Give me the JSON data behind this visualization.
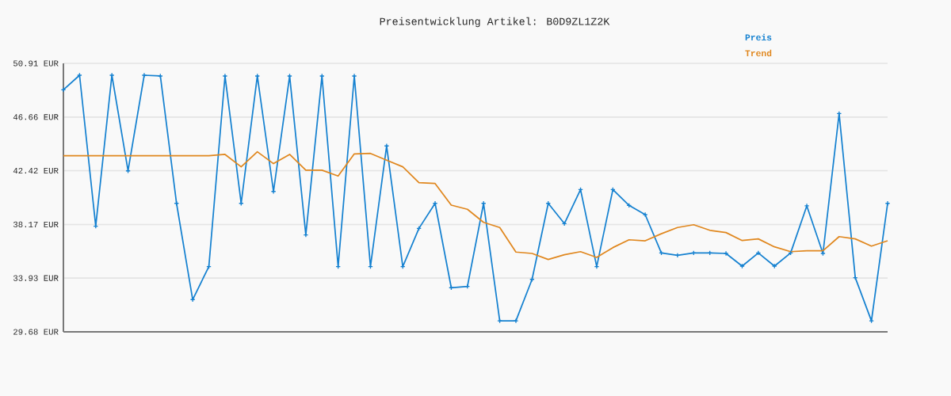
{
  "chart_data": {
    "type": "line",
    "title": "Preisentwicklung Artikel: B0D9ZL1Z2K",
    "categories": [
      null,
      null,
      null,
      null,
      null,
      null,
      null,
      null,
      null,
      null,
      null,
      null,
      null,
      null,
      null,
      null,
      null,
      null,
      null,
      null,
      null,
      null,
      null,
      null,
      null,
      null,
      null,
      null,
      null,
      null,
      null,
      null,
      null,
      null,
      null,
      null,
      null,
      null,
      null,
      null,
      null,
      null,
      null,
      null,
      null,
      null,
      null,
      null,
      null,
      null,
      null,
      null
    ],
    "series": [
      {
        "name": "Preis",
        "color": "#1581d0",
        "marker": "cross",
        "values": [
          48.82,
          49.97,
          38.03,
          49.97,
          42.41,
          49.97,
          49.91,
          39.84,
          32.23,
          34.84,
          49.91,
          39.84,
          49.91,
          40.78,
          49.91,
          37.34,
          49.91,
          34.84,
          49.91,
          34.84,
          44.38,
          34.84,
          37.86,
          39.84,
          33.17,
          33.27,
          39.84,
          30.55,
          30.55,
          33.83,
          39.84,
          38.24,
          40.93,
          34.84,
          40.93,
          39.68,
          38.95,
          35.92,
          35.73,
          35.92,
          35.92,
          35.88,
          34.88,
          35.92,
          34.88,
          35.92,
          39.64,
          35.88,
          46.94,
          33.96,
          30.55,
          39.84
        ]
      },
      {
        "name": "Trend",
        "color": "#e0871e",
        "marker": "none",
        "values": [
          43.6,
          43.6,
          43.6,
          43.6,
          43.6,
          43.6,
          43.6,
          43.6,
          43.6,
          43.6,
          43.71,
          42.73,
          43.92,
          42.98,
          43.71,
          42.46,
          42.46,
          42.0,
          43.75,
          43.79,
          43.25,
          42.73,
          41.47,
          41.41,
          39.7,
          39.37,
          38.34,
          37.93,
          35.99,
          35.88,
          35.4,
          35.78,
          36.02,
          35.57,
          36.34,
          36.96,
          36.88,
          37.44,
          37.93,
          38.15,
          37.71,
          37.53,
          36.9,
          37.03,
          36.4,
          36.02,
          36.09,
          36.09,
          37.21,
          37.03,
          36.46,
          36.88
        ]
      }
    ],
    "ylim": [
      29.68,
      50.91
    ],
    "yticks": [
      {
        "value": 29.68,
        "label": "29.68 EUR"
      },
      {
        "value": 33.93,
        "label": "33.93 EUR"
      },
      {
        "value": 38.17,
        "label": "38.17 EUR"
      },
      {
        "value": 42.42,
        "label": "42.42 EUR"
      },
      {
        "value": 46.66,
        "label": "46.66 EUR"
      },
      {
        "value": 50.91,
        "label": "50.91 EUR"
      }
    ],
    "grid": "y",
    "legend": "top right",
    "line_style": "solid"
  }
}
